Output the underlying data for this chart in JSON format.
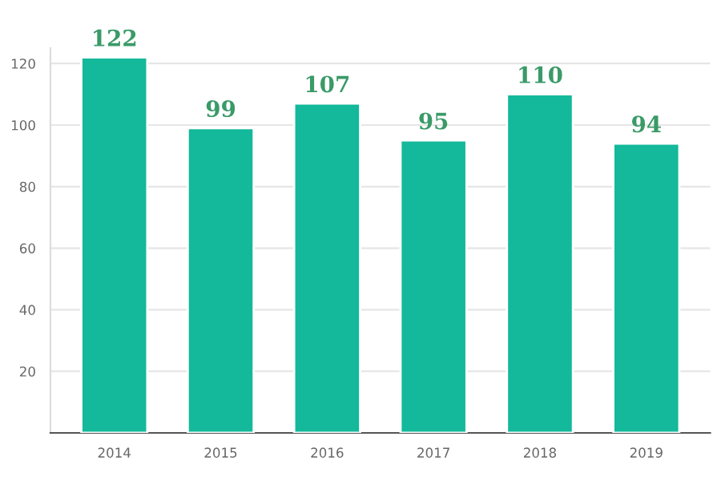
{
  "chart_data": {
    "type": "bar",
    "categories": [
      "2014",
      "2015",
      "2016",
      "2017",
      "2018",
      "2019"
    ],
    "values": [
      122,
      99,
      107,
      95,
      110,
      94
    ],
    "color": "#13b99a",
    "data_labels": true,
    "ylim": [
      0,
      125
    ],
    "yticks": [
      20,
      40,
      60,
      80,
      100,
      120
    ],
    "grid": "y"
  }
}
